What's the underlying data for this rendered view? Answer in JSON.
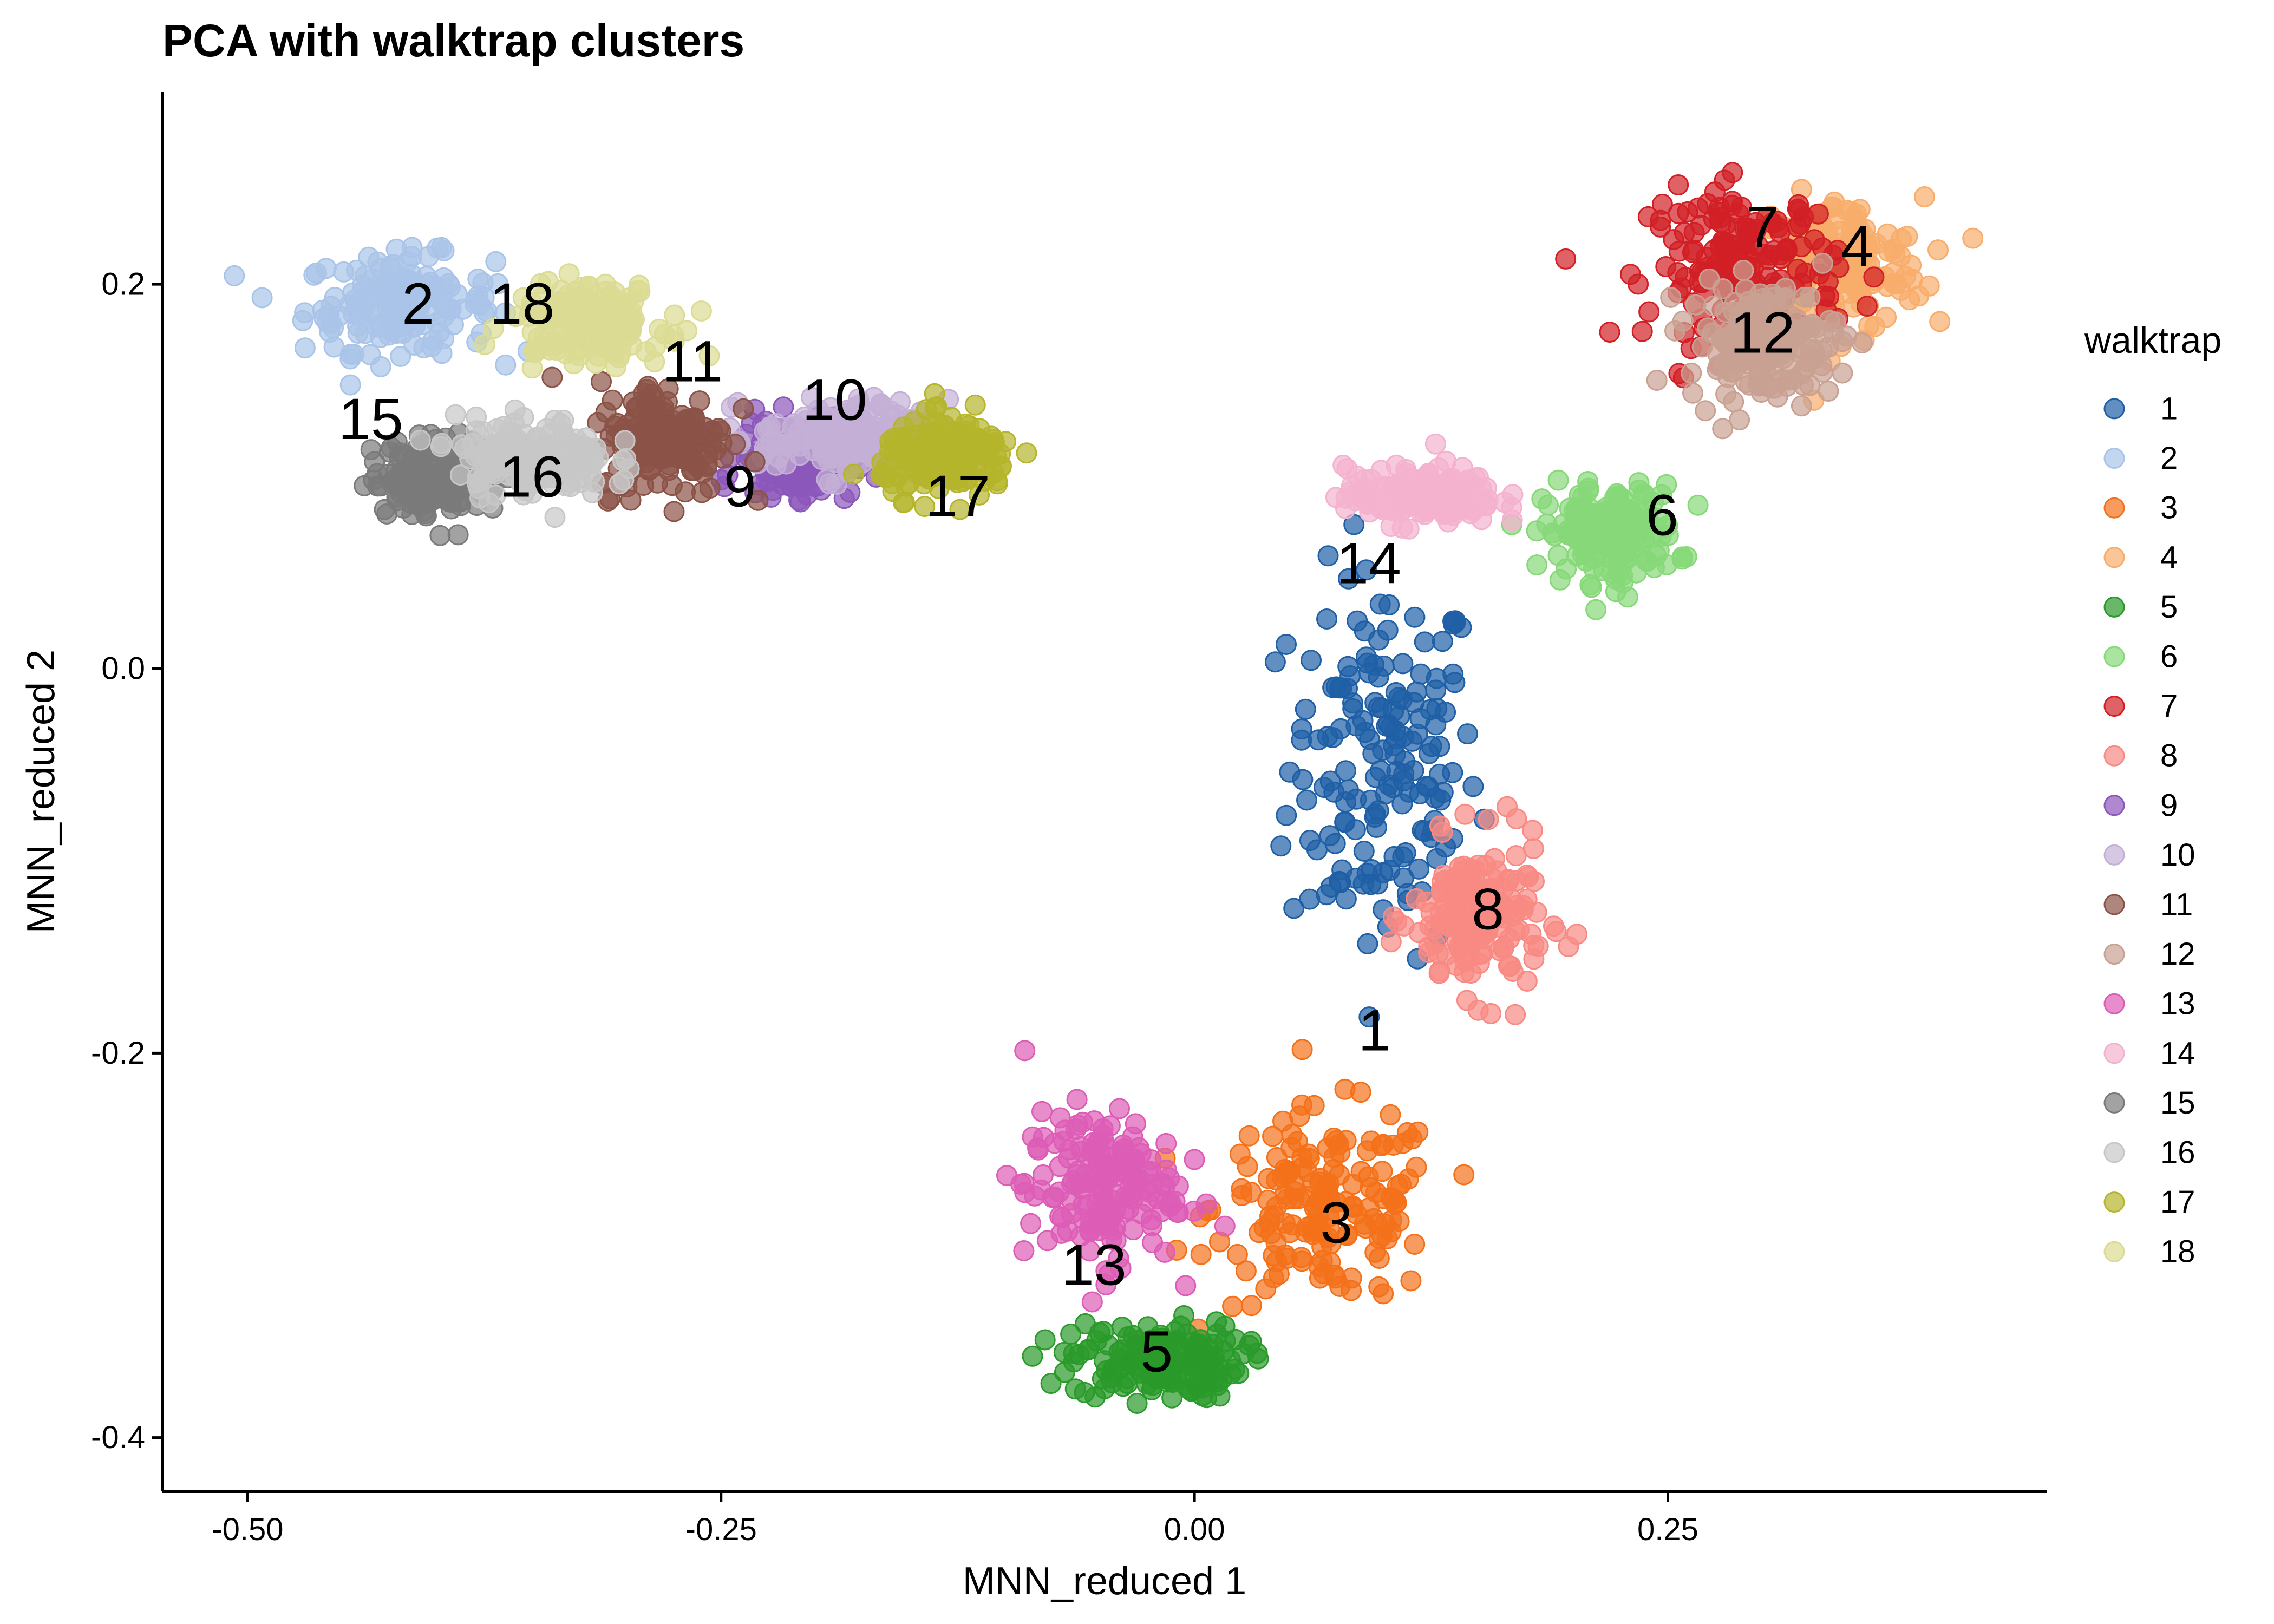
{
  "chart_data": {
    "type": "scatter",
    "title": "PCA with walktrap clusters",
    "xlabel": "MNN_reduced 1",
    "ylabel": "MNN_reduced 2",
    "xlim": [
      -0.545,
      0.45
    ],
    "ylim": [
      -0.428,
      0.3
    ],
    "xticks": [
      {
        "value": -0.5,
        "label": "-0.50"
      },
      {
        "value": -0.25,
        "label": "-0.25"
      },
      {
        "value": 0.0,
        "label": "0.00"
      },
      {
        "value": 0.25,
        "label": "0.25"
      }
    ],
    "yticks": [
      {
        "value": 0.2,
        "label": "0.2"
      },
      {
        "value": 0.0,
        "label": "0.0"
      },
      {
        "value": -0.2,
        "label": "-0.2"
      },
      {
        "value": -0.4,
        "label": "-0.4"
      }
    ],
    "grid": false,
    "legend": {
      "title": "walktrap",
      "position": "right"
    },
    "series": [
      {
        "name": "1",
        "color": "#1f5fa6",
        "center": [
          0.1,
          -0.05
        ],
        "spread": [
          0.05,
          0.1
        ]
      },
      {
        "name": "2",
        "color": "#a9c4e8",
        "center": [
          -0.42,
          0.19
        ],
        "spread": [
          0.05,
          0.025
        ]
      },
      {
        "name": "3",
        "color": "#f4711a",
        "center": [
          0.07,
          -0.28
        ],
        "spread": [
          0.06,
          0.05
        ]
      },
      {
        "name": "4",
        "color": "#f8ad6b",
        "center": [
          0.34,
          0.21
        ],
        "spread": [
          0.045,
          0.035
        ]
      },
      {
        "name": "5",
        "color": "#2a9a2a",
        "center": [
          -0.02,
          -0.36
        ],
        "spread": [
          0.045,
          0.02
        ]
      },
      {
        "name": "6",
        "color": "#86d878",
        "center": [
          0.22,
          0.07
        ],
        "spread": [
          0.035,
          0.025
        ]
      },
      {
        "name": "7",
        "color": "#d21f25",
        "center": [
          0.29,
          0.21
        ],
        "spread": [
          0.05,
          0.04
        ]
      },
      {
        "name": "8",
        "color": "#f88a83",
        "center": [
          0.15,
          -0.13
        ],
        "spread": [
          0.035,
          0.04
        ]
      },
      {
        "name": "9",
        "color": "#8b57bb",
        "center": [
          -0.21,
          0.11
        ],
        "spread": [
          0.03,
          0.02
        ]
      },
      {
        "name": "10",
        "color": "#c4afd6",
        "center": [
          -0.18,
          0.12
        ],
        "spread": [
          0.05,
          0.02
        ]
      },
      {
        "name": "11",
        "color": "#8b5347",
        "center": [
          -0.28,
          0.12
        ],
        "spread": [
          0.035,
          0.03
        ]
      },
      {
        "name": "12",
        "color": "#c9a193",
        "center": [
          0.3,
          0.17
        ],
        "spread": [
          0.04,
          0.03
        ]
      },
      {
        "name": "13",
        "color": "#dd5cb6",
        "center": [
          -0.05,
          -0.27
        ],
        "spread": [
          0.04,
          0.04
        ]
      },
      {
        "name": "14",
        "color": "#f4b2cf",
        "center": [
          0.12,
          0.09
        ],
        "spread": [
          0.04,
          0.015
        ]
      },
      {
        "name": "15",
        "color": "#7a7a7a",
        "center": [
          -0.4,
          0.1
        ],
        "spread": [
          0.035,
          0.02
        ]
      },
      {
        "name": "16",
        "color": "#c7c7c7",
        "center": [
          -0.35,
          0.11
        ],
        "spread": [
          0.04,
          0.02
        ]
      },
      {
        "name": "17",
        "color": "#b5b52c",
        "center": [
          -0.13,
          0.11
        ],
        "spread": [
          0.035,
          0.02
        ]
      },
      {
        "name": "18",
        "color": "#dbdb93",
        "center": [
          -0.32,
          0.18
        ],
        "spread": [
          0.04,
          0.02
        ]
      }
    ],
    "cluster_labels": [
      {
        "text": "2",
        "x": -0.41,
        "y": 0.19
      },
      {
        "text": "18",
        "x": -0.355,
        "y": 0.19
      },
      {
        "text": "11",
        "x": -0.265,
        "y": 0.16
      },
      {
        "text": "15",
        "x": -0.435,
        "y": 0.13
      },
      {
        "text": "10",
        "x": -0.19,
        "y": 0.14
      },
      {
        "text": "16",
        "x": -0.35,
        "y": 0.1
      },
      {
        "text": "9",
        "x": -0.24,
        "y": 0.095
      },
      {
        "text": "17",
        "x": -0.125,
        "y": 0.09
      },
      {
        "text": "7",
        "x": 0.3,
        "y": 0.23
      },
      {
        "text": "4",
        "x": 0.35,
        "y": 0.22
      },
      {
        "text": "12",
        "x": 0.3,
        "y": 0.175
      },
      {
        "text": "6",
        "x": 0.247,
        "y": 0.08
      },
      {
        "text": "14",
        "x": 0.092,
        "y": 0.055
      },
      {
        "text": "8",
        "x": 0.155,
        "y": -0.125
      },
      {
        "text": "1",
        "x": 0.095,
        "y": -0.188
      },
      {
        "text": "3",
        "x": 0.075,
        "y": -0.288
      },
      {
        "text": "13",
        "x": -0.053,
        "y": -0.31
      },
      {
        "text": "5",
        "x": -0.02,
        "y": -0.355
      }
    ]
  }
}
